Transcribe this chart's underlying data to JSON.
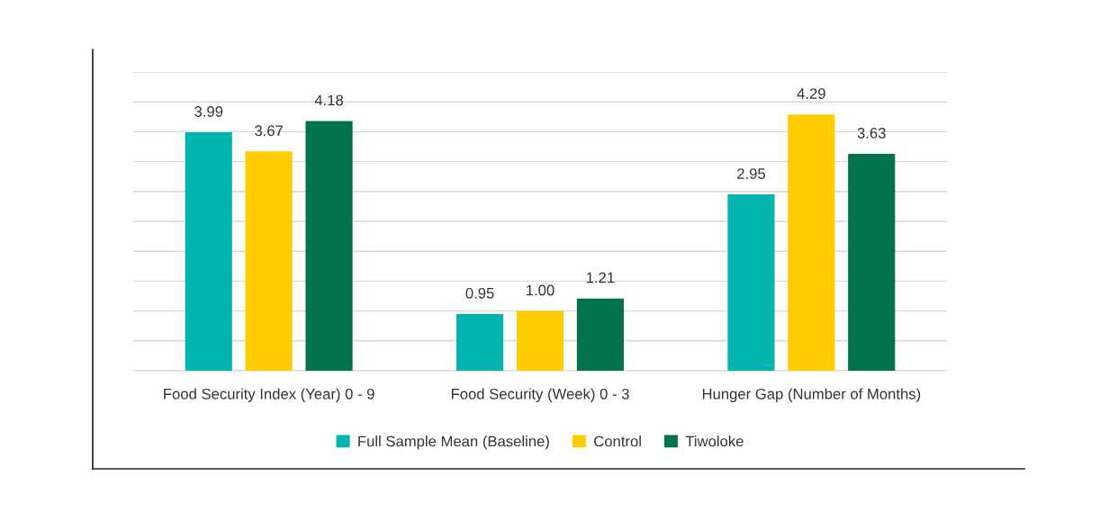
{
  "chart_data": {
    "type": "bar",
    "categories": [
      "Food Security Index (Year) 0 - 9",
      "Food Security (Week) 0 - 3",
      "Hunger Gap (Number of Months)"
    ],
    "series": [
      {
        "name": "Full Sample Mean (Baseline)",
        "color": "#00b5ad",
        "values": [
          3.99,
          0.95,
          2.95
        ],
        "value_labels": [
          "3.99",
          "0.95",
          "2.95"
        ]
      },
      {
        "name": "Control",
        "color": "#ffcc00",
        "values": [
          3.67,
          1.0,
          4.29
        ],
        "value_labels": [
          "3.67",
          "1.00",
          "4.29"
        ]
      },
      {
        "name": "Tiwoloke",
        "color": "#00734a",
        "values": [
          4.18,
          1.21,
          3.63
        ],
        "value_labels": [
          "4.18",
          "1.21",
          "3.63"
        ]
      }
    ],
    "ylim": [
      0,
      5
    ],
    "yticks": [
      {
        "value": 0,
        "label": null
      },
      {
        "value": 0.5,
        "label": null
      },
      {
        "value": 1,
        "label": null
      },
      {
        "value": 1.5,
        "label": null
      },
      {
        "value": 2,
        "label": null
      },
      {
        "value": 2.5,
        "label": null
      },
      {
        "value": 3,
        "label": null
      },
      {
        "value": 3.5,
        "label": null
      },
      {
        "value": 4,
        "label": null
      },
      {
        "value": 4.5,
        "label": null
      },
      {
        "value": 5,
        "label": null
      }
    ],
    "tick_labels": "x",
    "grid": "y",
    "legend": "bottom"
  }
}
